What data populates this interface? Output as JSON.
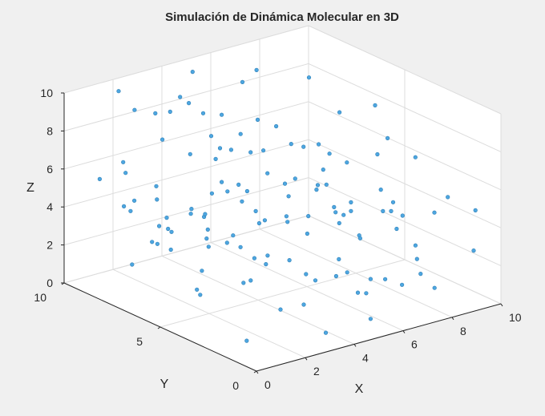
{
  "chart_data": {
    "type": "scatter",
    "title": "Simulación de Dinámica Molecular en 3D",
    "xlabel": "X",
    "ylabel": "Y",
    "zlabel": "Z",
    "xlim": [
      0,
      10
    ],
    "ylim": [
      0,
      10
    ],
    "zlim": [
      0,
      10
    ],
    "xticks": [
      "0",
      "2",
      "4",
      "6",
      "8",
      "10"
    ],
    "yticks": [
      "0",
      "5",
      "10"
    ],
    "zticks": [
      "0",
      "2",
      "4",
      "6",
      "8",
      "10"
    ],
    "grid": true,
    "view": "3d-default",
    "marker_color": "#4da6e0",
    "points": [
      [
        0.2,
        6.8,
        5.2
      ],
      [
        1.7,
        8.5,
        9.2
      ],
      [
        1.7,
        2.2,
        6.8
      ],
      [
        3.3,
        6.0,
        6.0
      ],
      [
        5.0,
        9.8,
        5.1
      ],
      [
        4.0,
        9.5,
        1.5
      ],
      [
        2.2,
        9.6,
        5.2
      ],
      [
        7.7,
        2.5,
        3.6
      ],
      [
        8.9,
        9.7,
        0.2
      ],
      [
        1.3,
        9.8,
        5.1
      ],
      [
        4.3,
        5.4,
        9.2
      ],
      [
        0.3,
        2.5,
        9.9
      ],
      [
        3.6,
        5.4,
        8.7
      ],
      [
        6.3,
        2.3,
        0.8
      ],
      [
        2.8,
        1.1,
        2.0
      ],
      [
        1.6,
        6.7,
        4.4
      ],
      [
        8.6,
        6.4,
        2.2
      ],
      [
        8.0,
        2.6,
        0.5
      ],
      [
        2.6,
        7.9,
        2.9
      ],
      [
        7.5,
        1.0,
        2.0
      ],
      [
        9.2,
        0.4,
        2.9
      ],
      [
        5.3,
        0.8,
        0.5
      ],
      [
        1.3,
        8.0,
        4.8
      ],
      [
        7.0,
        1.3,
        5.1
      ],
      [
        6.2,
        6.4,
        4.7
      ],
      [
        6.8,
        3.3,
        3.2
      ],
      [
        4.0,
        7.4,
        4.5
      ],
      [
        6.3,
        8.0,
        9.9
      ],
      [
        4.8,
        6.4,
        0.1
      ],
      [
        1.6,
        8.5,
        1.1
      ],
      [
        7.6,
        0.4,
        1.5
      ],
      [
        3.8,
        7.6,
        8.7
      ],
      [
        4.4,
        5.1,
        1.7
      ],
      [
        4.5,
        6.2,
        5.0
      ],
      [
        7.7,
        6.6,
        4.0
      ],
      [
        9.9,
        1.2,
        4.4
      ],
      [
        1.8,
        5.7,
        5.0
      ],
      [
        5.7,
        8.0,
        3.2
      ],
      [
        2.1,
        1.0,
        8.0
      ],
      [
        3.7,
        2.9,
        9.3
      ],
      [
        4.1,
        1.1,
        6.4
      ],
      [
        9.1,
        3.3,
        6.5
      ],
      [
        2.9,
        5.0,
        8.3
      ],
      [
        2.6,
        5.2,
        8.4
      ],
      [
        2.5,
        6.1,
        0.3
      ],
      [
        4.4,
        7.4,
        8.5
      ],
      [
        6.4,
        4.9,
        7.4
      ],
      [
        6.0,
        6.6,
        7.7
      ],
      [
        5.1,
        9.8,
        9.4
      ],
      [
        1.6,
        9.2,
        9.9
      ],
      [
        8.0,
        4.0,
        9.3
      ],
      [
        3.3,
        9.4,
        4.2
      ],
      [
        5.3,
        3.1,
        6.5
      ],
      [
        4.0,
        0.8,
        4.1
      ],
      [
        6.7,
        1.7,
        9.1
      ],
      [
        5.8,
        9.9,
        0.8
      ],
      [
        0.6,
        3.6,
        3.4
      ],
      [
        6.4,
        7.7,
        2.1
      ],
      [
        4.0,
        8.6,
        8.7
      ],
      [
        1.5,
        6.8,
        8.5
      ],
      [
        1.0,
        2.8,
        5.1
      ],
      [
        5.5,
        1.6,
        4.3
      ],
      [
        7.8,
        7.9,
        3.7
      ],
      [
        0.4,
        7.4,
        5.1
      ],
      [
        3.5,
        9.6,
        1.0
      ],
      [
        5.3,
        0.8,
        2.6
      ],
      [
        6.7,
        4.2,
        9.3
      ],
      [
        9.6,
        7.5,
        4.1
      ],
      [
        5.9,
        0.5,
        6.1
      ],
      [
        8.3,
        1.3,
        4.8
      ],
      [
        9.4,
        3.6,
        0.9
      ],
      [
        7.9,
        7.4,
        1.0
      ],
      [
        7.8,
        5.0,
        3.8
      ],
      [
        2.0,
        7.6,
        3.4
      ],
      [
        1.0,
        2.1,
        5.2
      ],
      [
        0.4,
        3.1,
        5.4
      ],
      [
        1.3,
        6.1,
        3.1
      ],
      [
        7.4,
        2.3,
        5.2
      ],
      [
        3.6,
        2.0,
        2.9
      ],
      [
        5.6,
        2.4,
        2.1
      ],
      [
        7.0,
        6.2,
        2.8
      ],
      [
        4.0,
        6.3,
        2.8
      ],
      [
        5.4,
        3.8,
        1.1
      ],
      [
        5.5,
        7.1,
        0.7
      ],
      [
        7.1,
        5.9,
        4.3
      ],
      [
        5.8,
        8.1,
        9.4
      ],
      [
        3.9,
        4.6,
        8.1
      ],
      [
        6.6,
        2.1,
        8.1
      ],
      [
        9.4,
        2.0,
        4.9
      ],
      [
        9.5,
        5.5,
        2.5
      ],
      [
        6.9,
        5.3,
        5.7
      ],
      [
        0.9,
        1.0,
        7.0
      ],
      [
        5.8,
        6.8,
        5.2
      ],
      [
        7.0,
        5.1,
        6.6
      ],
      [
        3.8,
        8.8,
        9.0
      ],
      [
        8.1,
        3.6,
        0.3
      ],
      [
        7.4,
        5.1,
        2.8
      ],
      [
        1.3,
        0.4,
        2.6
      ],
      [
        6.2,
        7.3,
        0.5
      ],
      [
        5.7,
        9.6,
        5.9
      ],
      [
        2.1,
        3.6,
        7.4
      ],
      [
        1.2,
        2.2,
        3.2
      ],
      [
        6.8,
        4.5,
        0.5
      ],
      [
        3.7,
        1.1,
        0.2
      ],
      [
        8.6,
        8.2,
        8.6
      ],
      [
        2.1,
        8.1,
        2.3
      ],
      [
        8.0,
        1.9,
        2.9
      ],
      [
        4.1,
        9.7,
        7.7
      ],
      [
        1.9,
        4.9,
        3.6
      ],
      [
        7.6,
        8.1,
        1.7
      ],
      [
        3.1,
        9.2,
        8.2
      ],
      [
        2.3,
        6.3,
        4.8
      ],
      [
        2.6,
        6.4,
        0.4
      ],
      [
        5.8,
        2.1,
        1.1
      ],
      [
        2.5,
        5.9,
        4.5
      ],
      [
        0.7,
        2.4,
        8.1
      ],
      [
        5.3,
        2.7,
        5.5
      ],
      [
        0.7,
        1.4,
        0.7
      ],
      [
        8.0,
        3.7,
        5.0
      ],
      [
        1.2,
        6.7,
        5.5
      ],
      [
        4.6,
        3.4,
        8.6
      ],
      [
        2.1,
        9.6,
        5.8
      ],
      [
        8.9,
        6.4,
        2.3
      ],
      [
        2.2,
        3.1,
        9.3
      ],
      [
        3.0,
        2.1,
        3.8
      ],
      [
        4.9,
        8.9,
        2.4
      ]
    ]
  }
}
